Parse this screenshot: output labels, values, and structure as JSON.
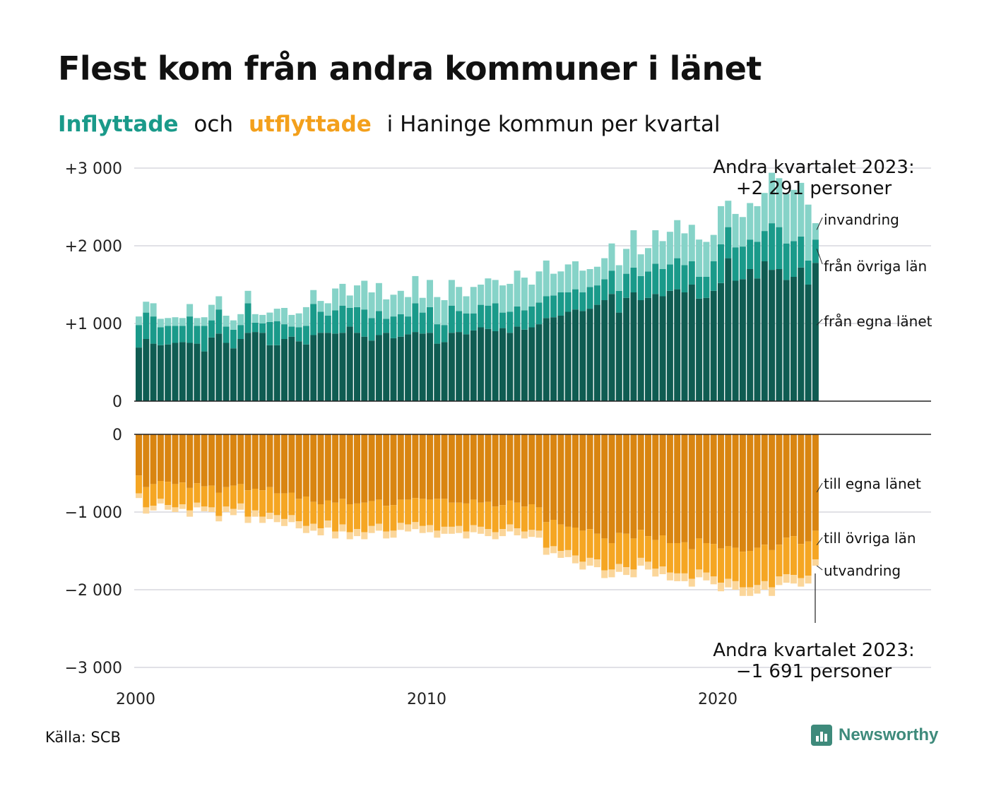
{
  "title": "Flest kom från andra kommuner i länet",
  "subtitle": {
    "in_word": "Inflyttade",
    "och": "och",
    "out_word": "utflyttade",
    "rest": "i Haninge kommun per kvartal"
  },
  "source": "Källa: SCB",
  "brand": "Newsworthy",
  "colors": {
    "in_egna": "#0f5c52",
    "in_ovriga": "#1a9a8a",
    "in_invandring": "#86d3c8",
    "out_egna": "#d98511",
    "out_ovriga": "#f5a623",
    "out_utvandring": "#fbd69a"
  },
  "annotations": {
    "top": [
      "Andra kvartalet 2023:",
      "+2 291 personer"
    ],
    "bottom": [
      "Andra kvartalet 2023:",
      "−1 691 personer"
    ]
  },
  "chart_data": [
    {
      "type": "bar",
      "stacked": true,
      "ylim": [
        0,
        3000
      ],
      "yticks": [
        0,
        1000,
        2000,
        3000
      ],
      "ytick_labels": [
        "0",
        "+1 000",
        "+2 000",
        "+3 000"
      ],
      "grid": true,
      "x": [
        "2000 Q1",
        "2000 Q2",
        "2000 Q3",
        "2000 Q4",
        "2001 Q1",
        "2001 Q2",
        "2001 Q3",
        "2001 Q4",
        "2002 Q1",
        "2002 Q2",
        "2002 Q3",
        "2002 Q4",
        "2003 Q1",
        "2003 Q2",
        "2003 Q3",
        "2003 Q4",
        "2004 Q1",
        "2004 Q2",
        "2004 Q3",
        "2004 Q4",
        "2005 Q1",
        "2005 Q2",
        "2005 Q3",
        "2005 Q4",
        "2006 Q1",
        "2006 Q2",
        "2006 Q3",
        "2006 Q4",
        "2007 Q1",
        "2007 Q2",
        "2007 Q3",
        "2007 Q4",
        "2008 Q1",
        "2008 Q2",
        "2008 Q3",
        "2008 Q4",
        "2009 Q1",
        "2009 Q2",
        "2009 Q3",
        "2009 Q4",
        "2010 Q1",
        "2010 Q2",
        "2010 Q3",
        "2010 Q4",
        "2011 Q1",
        "2011 Q2",
        "2011 Q3",
        "2011 Q4",
        "2012 Q1",
        "2012 Q2",
        "2012 Q3",
        "2012 Q4",
        "2013 Q1",
        "2013 Q2",
        "2013 Q3",
        "2013 Q4",
        "2014 Q1",
        "2014 Q2",
        "2014 Q3",
        "2014 Q4",
        "2015 Q1",
        "2015 Q2",
        "2015 Q3",
        "2015 Q4",
        "2016 Q1",
        "2016 Q2",
        "2016 Q3",
        "2016 Q4",
        "2017 Q1",
        "2017 Q2",
        "2017 Q3",
        "2017 Q4",
        "2018 Q1",
        "2018 Q2",
        "2018 Q3",
        "2018 Q4",
        "2019 Q1",
        "2019 Q2",
        "2019 Q3",
        "2019 Q4",
        "2020 Q1",
        "2020 Q2",
        "2020 Q3",
        "2020 Q4",
        "2021 Q1",
        "2021 Q2",
        "2021 Q3",
        "2021 Q4",
        "2022 Q1",
        "2022 Q2",
        "2022 Q3",
        "2022 Q4",
        "2023 Q1",
        "2023 Q2"
      ],
      "xticks": [
        "2000",
        "2010",
        "2020"
      ],
      "series": [
        {
          "name": "från egna länet",
          "values": [
            690,
            800,
            740,
            720,
            730,
            750,
            760,
            750,
            740,
            640,
            820,
            870,
            750,
            680,
            800,
            880,
            890,
            880,
            720,
            720,
            800,
            830,
            770,
            730,
            850,
            880,
            880,
            870,
            880,
            960,
            880,
            830,
            780,
            850,
            880,
            810,
            830,
            860,
            890,
            870,
            880,
            740,
            760,
            880,
            890,
            860,
            910,
            950,
            930,
            900,
            940,
            880,
            960,
            920,
            950,
            990,
            1070,
            1080,
            1100,
            1150,
            1180,
            1160,
            1190,
            1240,
            1300,
            1380,
            1140,
            1330,
            1400,
            1300,
            1330,
            1380,
            1350,
            1420,
            1440,
            1400,
            1500,
            1320,
            1330,
            1420,
            1520,
            1840,
            1550,
            1570,
            1700,
            1580,
            1800,
            1690,
            1700,
            1560,
            1600,
            1720,
            1500,
            1780
          ]
        },
        {
          "name": "från övriga län",
          "values": [
            290,
            340,
            350,
            230,
            240,
            220,
            210,
            340,
            230,
            330,
            220,
            310,
            210,
            240,
            180,
            380,
            120,
            120,
            300,
            310,
            190,
            130,
            180,
            240,
            400,
            270,
            220,
            300,
            350,
            240,
            330,
            350,
            290,
            310,
            180,
            280,
            290,
            230,
            370,
            270,
            330,
            250,
            220,
            350,
            270,
            270,
            220,
            290,
            300,
            360,
            200,
            270,
            260,
            250,
            270,
            280,
            280,
            280,
            300,
            250,
            260,
            240,
            280,
            250,
            270,
            300,
            280,
            310,
            320,
            310,
            340,
            390,
            350,
            340,
            400,
            350,
            300,
            280,
            270,
            380,
            500,
            400,
            430,
            420,
            380,
            470,
            390,
            600,
            540,
            470,
            460,
            400,
            310,
            300
          ]
        },
        {
          "name": "invandring",
          "values": [
            110,
            140,
            170,
            110,
            100,
            110,
            100,
            160,
            100,
            110,
            200,
            170,
            140,
            120,
            140,
            160,
            110,
            110,
            120,
            160,
            210,
            150,
            180,
            240,
            180,
            140,
            160,
            280,
            280,
            160,
            280,
            370,
            330,
            360,
            250,
            280,
            300,
            250,
            350,
            190,
            350,
            350,
            320,
            330,
            310,
            220,
            340,
            260,
            350,
            300,
            350,
            360,
            460,
            420,
            280,
            400,
            460,
            280,
            270,
            360,
            360,
            280,
            230,
            240,
            270,
            350,
            330,
            320,
            480,
            280,
            300,
            430,
            360,
            420,
            490,
            410,
            470,
            480,
            450,
            340,
            490,
            340,
            430,
            380,
            470,
            460,
            490,
            650,
            630,
            640,
            660,
            690,
            720,
            211
          ]
        }
      ],
      "series_labels": [
        "invandring",
        "från övriga län",
        "från egna länet"
      ]
    },
    {
      "type": "bar",
      "stacked": true,
      "ylim": [
        -3000,
        0
      ],
      "yticks": [
        0,
        -1000,
        -2000,
        -3000
      ],
      "ytick_labels": [
        "0",
        "−1 000",
        "−2 000",
        "−3 000"
      ],
      "grid": true,
      "xticks": [
        "2000",
        "2010",
        "2020"
      ],
      "series": [
        {
          "name": "till egna länet",
          "values": [
            -530,
            -680,
            -640,
            -600,
            -610,
            -640,
            -620,
            -690,
            -630,
            -670,
            -660,
            -750,
            -680,
            -660,
            -640,
            -720,
            -700,
            -720,
            -680,
            -760,
            -760,
            -750,
            -830,
            -800,
            -870,
            -900,
            -850,
            -880,
            -830,
            -900,
            -890,
            -880,
            -860,
            -840,
            -920,
            -910,
            -840,
            -840,
            -820,
            -830,
            -840,
            -830,
            -830,
            -880,
            -880,
            -890,
            -840,
            -880,
            -870,
            -930,
            -910,
            -850,
            -880,
            -930,
            -900,
            -940,
            -1130,
            -1100,
            -1160,
            -1190,
            -1200,
            -1240,
            -1220,
            -1280,
            -1340,
            -1400,
            -1270,
            -1280,
            -1340,
            -1230,
            -1310,
            -1360,
            -1300,
            -1400,
            -1400,
            -1390,
            -1480,
            -1340,
            -1400,
            -1410,
            -1470,
            -1440,
            -1460,
            -1510,
            -1500,
            -1460,
            -1420,
            -1490,
            -1420,
            -1330,
            -1310,
            -1410,
            -1380,
            -1240
          ]
        },
        {
          "name": "till övriga län",
          "values": [
            -230,
            -260,
            -280,
            -230,
            -300,
            -300,
            -280,
            -290,
            -250,
            -260,
            -280,
            -300,
            -250,
            -300,
            -250,
            -340,
            -280,
            -340,
            -330,
            -280,
            -330,
            -290,
            -290,
            -380,
            -280,
            -310,
            -260,
            -370,
            -330,
            -360,
            -330,
            -380,
            -320,
            -310,
            -330,
            -330,
            -300,
            -320,
            -310,
            -350,
            -330,
            -410,
            -360,
            -310,
            -300,
            -360,
            -330,
            -310,
            -350,
            -330,
            -310,
            -310,
            -330,
            -320,
            -330,
            -300,
            -330,
            -340,
            -340,
            -300,
            -360,
            -400,
            -370,
            -330,
            -410,
            -340,
            -400,
            -430,
            -400,
            -360,
            -330,
            -370,
            -400,
            -380,
            -390,
            -400,
            -380,
            -400,
            -380,
            -420,
            -440,
            -420,
            -430,
            -460,
            -470,
            -480,
            -470,
            -480,
            -410,
            -470,
            -500,
            -440,
            -440,
            -370
          ]
        },
        {
          "name": "utvandring",
          "values": [
            -60,
            -80,
            -60,
            -60,
            -60,
            -60,
            -60,
            -80,
            -60,
            -60,
            -60,
            -70,
            -70,
            -80,
            -80,
            -80,
            -80,
            -80,
            -80,
            -90,
            -90,
            -90,
            -90,
            -90,
            -90,
            -90,
            -90,
            -90,
            -90,
            -90,
            -90,
            -90,
            -90,
            -90,
            -90,
            -90,
            -90,
            -90,
            -90,
            -90,
            -90,
            -90,
            -90,
            -90,
            -90,
            -90,
            -90,
            -90,
            -90,
            -90,
            -90,
            -90,
            -90,
            -90,
            -90,
            -90,
            -90,
            -90,
            -90,
            -90,
            -100,
            -100,
            -100,
            -100,
            -100,
            -100,
            -100,
            -100,
            -100,
            -100,
            -100,
            -100,
            -100,
            -100,
            -100,
            -100,
            -100,
            -100,
            -100,
            -100,
            -110,
            -110,
            -110,
            -110,
            -110,
            -110,
            -110,
            -110,
            -110,
            -110,
            -110,
            -110,
            -100,
            -81
          ]
        }
      ],
      "series_labels": [
        "till egna länet",
        "till övriga län",
        "utvandring"
      ]
    }
  ]
}
